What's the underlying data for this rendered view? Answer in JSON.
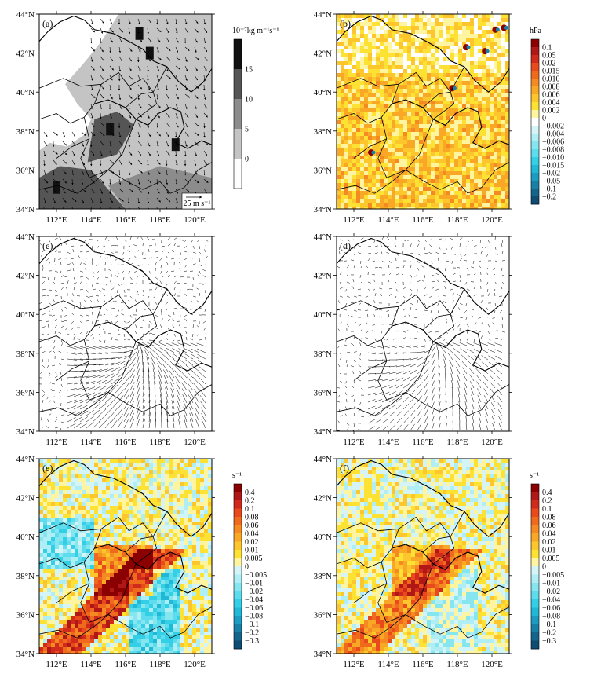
{
  "figure": {
    "panels": [
      {
        "id": "a",
        "label": "(a)",
        "kind": "gray",
        "scale_label": "25 m s⁻¹"
      },
      {
        "id": "b",
        "label": "(b)",
        "kind": "pressure"
      },
      {
        "id": "c",
        "label": "(c)",
        "kind": "wind"
      },
      {
        "id": "d",
        "label": "(d)",
        "kind": "wind"
      },
      {
        "id": "e",
        "label": "(e)",
        "kind": "divergence"
      },
      {
        "id": "f",
        "label": "(f)",
        "kind": "divergence"
      }
    ],
    "lon_ticks": [
      "112°E",
      "114°E",
      "116°E",
      "118°E",
      "120°E"
    ],
    "lat_ticks": [
      "44°N",
      "42°N",
      "40°N",
      "38°N",
      "36°N",
      "34°N"
    ]
  },
  "chart_data": [
    {
      "type": "heatmap",
      "panel": "a",
      "xlim": [
        111,
        121
      ],
      "ylim": [
        34,
        44
      ],
      "colorbar": {
        "unit": "10⁻⁷kg m⁻¹s⁻¹",
        "levels": [
          "15",
          "10",
          "5",
          "0"
        ],
        "colors": [
          "#111111",
          "#555555",
          "#8c8c8c",
          "#c4c4c4",
          "#ffffff"
        ]
      }
    },
    {
      "type": "heatmap",
      "panel": "b",
      "xlim": [
        111,
        121
      ],
      "ylim": [
        34,
        44
      ],
      "colorbar": {
        "unit": "hPa",
        "levels": [
          "0.1",
          "0.05",
          "0.02",
          "0.015",
          "0.010",
          "0.008",
          "0.006",
          "0.004",
          "0.002",
          "0",
          "−0.002",
          "−0.004",
          "−0.006",
          "−0.008",
          "−0.010",
          "−0.015",
          "−0.02",
          "−0.05",
          "−0.1",
          "−0.2"
        ],
        "colors": [
          "#8b0000",
          "#b01818",
          "#d02a1c",
          "#e84a1c",
          "#f06a1e",
          "#f58a22",
          "#f9a826",
          "#fcc62c",
          "#fde234",
          "#fff5a0",
          "#ffffff",
          "#d4f4f7",
          "#aeeef4",
          "#86e6f0",
          "#5cdcec",
          "#33cfe6",
          "#20b8d6",
          "#1b9cc0",
          "#1880a6",
          "#14658c",
          "#0e4c72"
        ]
      }
    },
    {
      "type": "vector",
      "panel": "c",
      "xlim": [
        111,
        121
      ],
      "ylim": [
        34,
        44
      ]
    },
    {
      "type": "vector",
      "panel": "d",
      "xlim": [
        111,
        121
      ],
      "ylim": [
        34,
        44
      ]
    },
    {
      "type": "heatmap",
      "panel": "e",
      "xlim": [
        111,
        121
      ],
      "ylim": [
        34,
        44
      ],
      "colorbar": {
        "unit": "s⁻¹",
        "levels": [
          "0.4",
          "0.2",
          "0.1",
          "0.08",
          "0.06",
          "0.04",
          "0.02",
          "0.01",
          "0.005",
          "0",
          "−0.005",
          "−0.01",
          "−0.02",
          "−0.04",
          "−0.06",
          "−0.08",
          "−0.1",
          "−0.2",
          "−0.3"
        ],
        "colors": [
          "#8b0000",
          "#b01818",
          "#d02a1c",
          "#e84a1c",
          "#f06a1e",
          "#f58a22",
          "#f9a826",
          "#fcc62c",
          "#fde234",
          "#fff5a0",
          "#d4f4f7",
          "#aeeef4",
          "#86e6f0",
          "#5cdcec",
          "#33cfe6",
          "#20b8d6",
          "#1b9cc0",
          "#1880a6",
          "#14658c",
          "#0e4c72"
        ]
      }
    },
    {
      "type": "heatmap",
      "panel": "f",
      "xlim": [
        111,
        121
      ],
      "ylim": [
        34,
        44
      ],
      "colorbar": {
        "unit": "s⁻¹",
        "levels": [
          "0.4",
          "0.2",
          "0.1",
          "0.08",
          "0.06",
          "0.04",
          "0.02",
          "0.01",
          "0.005",
          "0",
          "−0.005",
          "−0.01",
          "−0.02",
          "−0.04",
          "−0.06",
          "−0.08",
          "−0.1",
          "−0.2",
          "−0.3"
        ],
        "colors": [
          "#8b0000",
          "#b01818",
          "#d02a1c",
          "#e84a1c",
          "#f06a1e",
          "#f58a22",
          "#f9a826",
          "#fcc62c",
          "#fde234",
          "#fff5a0",
          "#d4f4f7",
          "#aeeef4",
          "#86e6f0",
          "#5cdcec",
          "#33cfe6",
          "#20b8d6",
          "#1b9cc0",
          "#1880a6",
          "#14658c",
          "#0e4c72"
        ]
      }
    }
  ]
}
